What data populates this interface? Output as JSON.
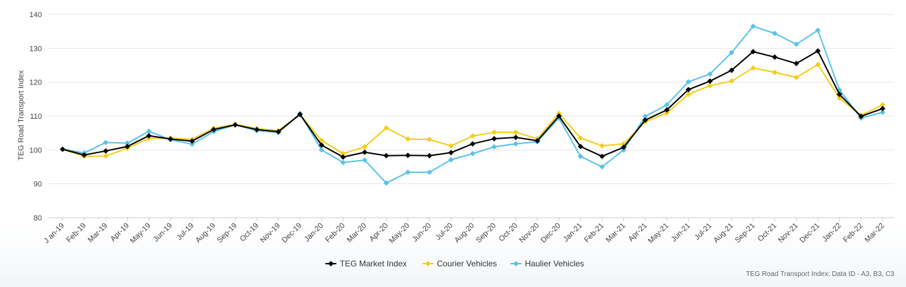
{
  "chart_data": {
    "type": "line",
    "title": "",
    "xlabel": "",
    "ylabel": "TEG Road Transport Index",
    "ylim": [
      80,
      140
    ],
    "yticks": [
      80,
      90,
      100,
      110,
      120,
      130,
      140
    ],
    "grid": true,
    "legend_position": "bottom-center",
    "categories": [
      "J an-19",
      "Feb-19",
      "Mar-19",
      "Apr-19",
      "May-19",
      "Jun-19",
      "Jul-19",
      "Aug-19",
      "Sep-19",
      "Oct-19",
      "Nov-19",
      "Dec-19",
      "Jan-20",
      "Feb-20",
      "Mar-20",
      "Apr-20",
      "May-20",
      "Jun-20",
      "Jul-20",
      "Aug-20",
      "Sep-20",
      "Oct-20",
      "Nov-20",
      "Dec-20",
      "Jan-21",
      "Feb-21",
      "Mar-21",
      "Apr-21",
      "May-21",
      "Jun-21",
      "Jul-21",
      "Aug-21",
      "Sep-21",
      "Oct-21",
      "Nov-21",
      "Dec-21",
      "Jan-22",
      "Feb-22",
      "Mar-22"
    ],
    "series": [
      {
        "name": "TEG Market Index",
        "color": "#000000",
        "values": [
          100.2,
          98.5,
          99.7,
          101.0,
          104.2,
          103.2,
          102.6,
          106.0,
          107.4,
          106.0,
          105.4,
          110.5,
          101.4,
          97.9,
          99.3,
          98.3,
          98.4,
          98.3,
          99.2,
          101.8,
          103.3,
          103.7,
          102.7,
          110.0,
          101.0,
          98.1,
          100.8,
          108.8,
          111.8,
          117.8,
          120.3,
          123.5,
          129.0,
          127.4,
          125.5,
          129.2,
          116.4,
          109.9,
          112.2
        ]
      },
      {
        "name": "Courier Vehicles",
        "color": "#f5cc1a",
        "values": [
          100.2,
          98.1,
          98.2,
          100.5,
          103.4,
          103.5,
          103.1,
          106.4,
          107.6,
          106.3,
          105.7,
          110.4,
          102.8,
          98.9,
          100.9,
          106.5,
          103.2,
          103.1,
          101.2,
          104.1,
          105.2,
          105.2,
          103.3,
          110.8,
          103.5,
          101.2,
          101.8,
          108.3,
          110.9,
          116.4,
          119.0,
          120.3,
          124.2,
          122.9,
          121.4,
          125.2,
          115.3,
          110.2,
          113.3
        ]
      },
      {
        "name": "Haulier Vehicles",
        "color": "#5bc2e7",
        "values": [
          100.2,
          99.1,
          102.2,
          102.0,
          105.5,
          103.0,
          101.7,
          105.4,
          107.4,
          105.7,
          105.1,
          110.7,
          100.0,
          96.3,
          97.0,
          90.2,
          93.4,
          93.4,
          97.1,
          98.9,
          100.9,
          101.8,
          102.4,
          109.4,
          98.1,
          95.0,
          100.0,
          109.9,
          113.3,
          120.1,
          122.4,
          128.7,
          136.5,
          134.4,
          131.2,
          135.3,
          117.7,
          109.4,
          111.1
        ]
      }
    ]
  },
  "source_note": "TEG Road Transport Index: Data ID - A3, B3, C3"
}
